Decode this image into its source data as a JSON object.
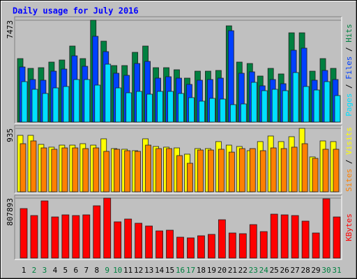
{
  "chart_data": [
    {
      "type": "bar",
      "title": "Daily usage for July 2016",
      "legend_separator": " / ",
      "ylim": [
        0,
        7473
      ],
      "yticks": [
        7473
      ],
      "series": [
        {
          "name": "Hits",
          "color": "#008040",
          "values": [
            4658,
            3941,
            3992,
            4402,
            4555,
            5579,
            4658,
            7473,
            5937,
            4146,
            4146,
            5118,
            5579,
            3992,
            3992,
            3839,
            3225,
            3736,
            3736,
            3788,
            7063,
            4402,
            4299,
            3378,
            3941,
            3532,
            6551,
            6551,
            3736,
            4658,
            3941
          ]
        },
        {
          "name": "Files",
          "color": "#0040ff",
          "values": [
            4043,
            3122,
            3071,
            3736,
            3890,
            4862,
            4094,
            6295,
            5169,
            3583,
            3429,
            4299,
            4453,
            3224,
            3327,
            3224,
            2764,
            3071,
            3122,
            3224,
            6705,
            3583,
            3685,
            2661,
            3122,
            2815,
            5272,
            5425,
            3071,
            3787,
            3122
          ]
        },
        {
          "name": "Pages",
          "color": "#00e0ff",
          "values": [
            2968,
            2406,
            2099,
            2508,
            2610,
            3122,
            3122,
            2713,
            4248,
            2508,
            2150,
            2252,
            2047,
            2252,
            2252,
            2099,
            1791,
            1535,
            1740,
            1689,
            1280,
            1331,
            2917,
            2303,
            2406,
            2303,
            3634,
            2610,
            2354,
            2968,
            1945
          ]
        }
      ]
    },
    {
      "type": "bar",
      "legend_separator": " / ",
      "ylim": [
        0,
        935
      ],
      "yticks": [
        935
      ],
      "series": [
        {
          "name": "Visits",
          "color": "#ffff00",
          "values": [
            832,
            832,
            699,
            658,
            688,
            688,
            709,
            688,
            781,
            637,
            627,
            606,
            781,
            668,
            658,
            647,
            555,
            637,
            637,
            740,
            688,
            668,
            606,
            740,
            822,
            740,
            812,
            935,
            514,
            750,
            740
          ]
        },
        {
          "name": "Sites",
          "color": "#ff8000",
          "values": [
            709,
            750,
            647,
            627,
            647,
            647,
            637,
            647,
            596,
            627,
            606,
            596,
            688,
            637,
            637,
            534,
            421,
            616,
            616,
            627,
            585,
            637,
            637,
            606,
            647,
            637,
            658,
            709,
            493,
            627,
            627
          ]
        }
      ]
    },
    {
      "type": "bar",
      "ylim": [
        0,
        807893
      ],
      "yticks": [
        807893
      ],
      "series": [
        {
          "name": "KBytes",
          "color": "#ff0000",
          "values": [
            666974,
            573034,
            770308,
            554246,
            582428,
            573034,
            582428,
            704550,
            807893,
            488488,
            526064,
            469700,
            432124,
            366366,
            375760,
            281820,
            272426,
            300608,
            319396,
            516670,
            338184,
            328790,
            450912,
            356972,
            591822,
            582428,
            573034,
            497882,
            338184,
            798490,
            554246
          ]
        }
      ],
      "categories": [
        "1",
        "2",
        "3",
        "4",
        "5",
        "6",
        "7",
        "8",
        "9",
        "10",
        "11",
        "12",
        "13",
        "14",
        "15",
        "16",
        "17",
        "18",
        "19",
        "20",
        "21",
        "22",
        "23",
        "24",
        "25",
        "26",
        "27",
        "28",
        "29",
        "30",
        "31"
      ],
      "category_colors": [
        "#000000",
        "#008040",
        "#008040",
        "#000000",
        "#000000",
        "#000000",
        "#000000",
        "#000000",
        "#008040",
        "#008040",
        "#000000",
        "#000000",
        "#000000",
        "#000000",
        "#000000",
        "#008040",
        "#008040",
        "#000000",
        "#000000",
        "#000000",
        "#000000",
        "#000000",
        "#008040",
        "#008040",
        "#000000",
        "#000000",
        "#000000",
        "#000000",
        "#000000",
        "#008040",
        "#008040"
      ]
    }
  ]
}
